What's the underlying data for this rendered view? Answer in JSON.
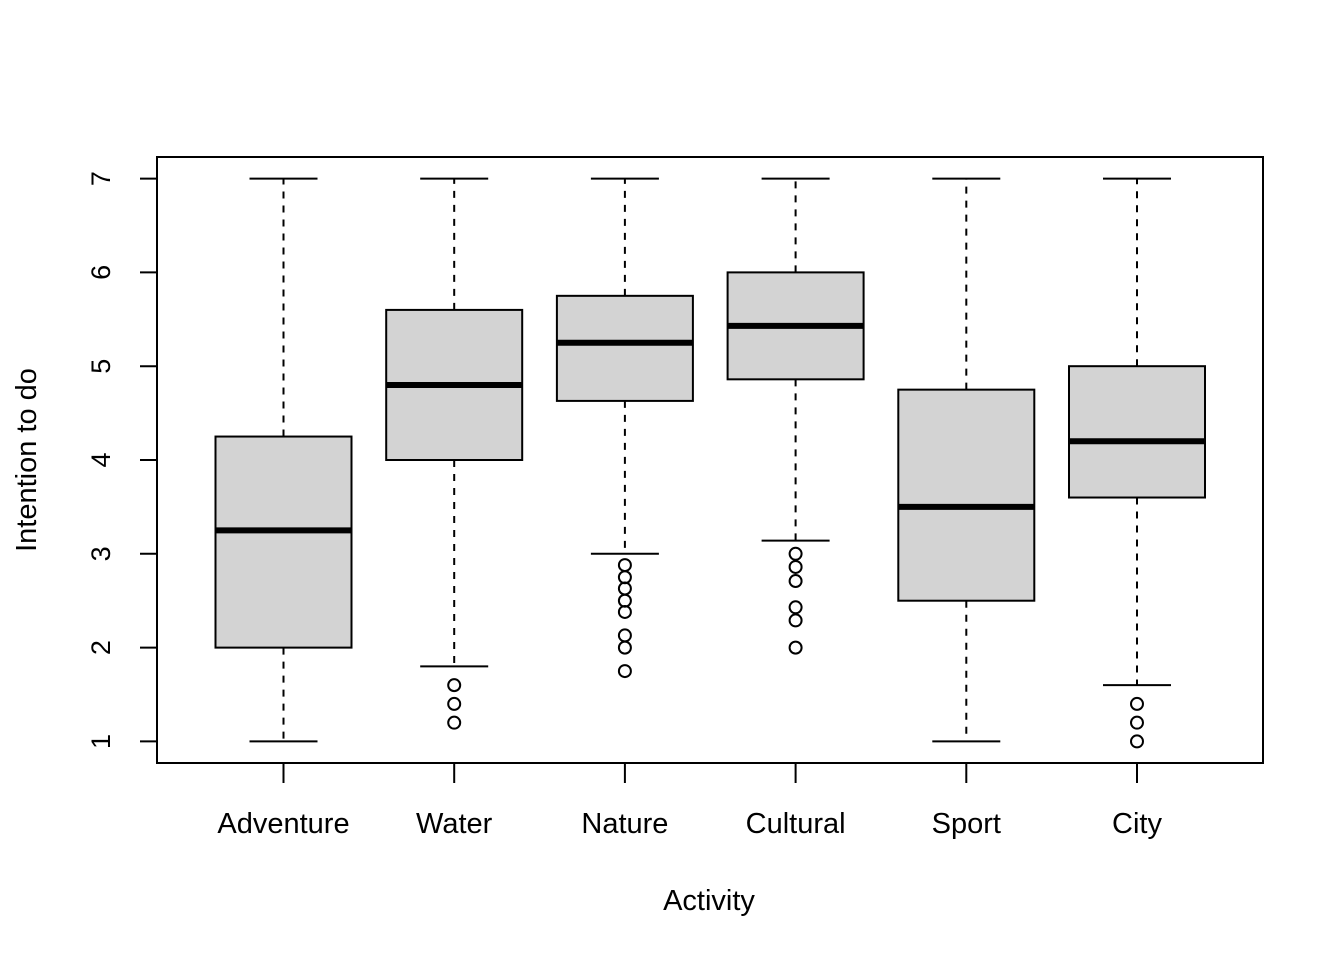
{
  "chart_data": {
    "type": "boxplot",
    "title": "",
    "xlabel": "Activity",
    "ylabel": "Intention to do",
    "ylim": [
      0.77,
      7.23
    ],
    "yticks": [
      1,
      2,
      3,
      4,
      5,
      6,
      7
    ],
    "grid": false,
    "legend": "none",
    "categories": [
      "Adventure",
      "Water",
      "Nature",
      "Cultural",
      "Sport",
      "City"
    ],
    "boxes": [
      {
        "category": "Adventure",
        "whisker_low": 1.0,
        "q1": 2.0,
        "median": 3.25,
        "q3": 4.25,
        "whisker_high": 7.0,
        "outliers": []
      },
      {
        "category": "Water",
        "whisker_low": 1.8,
        "q1": 4.0,
        "median": 4.8,
        "q3": 5.6,
        "whisker_high": 7.0,
        "outliers": [
          1.2,
          1.4,
          1.6
        ]
      },
      {
        "category": "Nature",
        "whisker_low": 3.0,
        "q1": 4.63,
        "median": 5.25,
        "q3": 5.75,
        "whisker_high": 7.0,
        "outliers": [
          1.75,
          2.0,
          2.13,
          2.38,
          2.5,
          2.63,
          2.75,
          2.88
        ]
      },
      {
        "category": "Cultural",
        "whisker_low": 3.14,
        "q1": 4.86,
        "median": 5.43,
        "q3": 6.0,
        "whisker_high": 7.0,
        "outliers": [
          2.0,
          2.29,
          2.43,
          2.71,
          2.86,
          3.0
        ]
      },
      {
        "category": "Sport",
        "whisker_low": 1.0,
        "q1": 2.5,
        "median": 3.5,
        "q3": 4.75,
        "whisker_high": 7.0,
        "outliers": []
      },
      {
        "category": "City",
        "whisker_low": 1.6,
        "q1": 3.6,
        "median": 4.2,
        "q3": 5.0,
        "whisker_high": 7.0,
        "outliers": [
          1.0,
          1.2,
          1.4
        ]
      }
    ],
    "colors": {
      "box_fill": "#d3d3d3",
      "stroke": "#000000",
      "background": "#ffffff"
    }
  }
}
